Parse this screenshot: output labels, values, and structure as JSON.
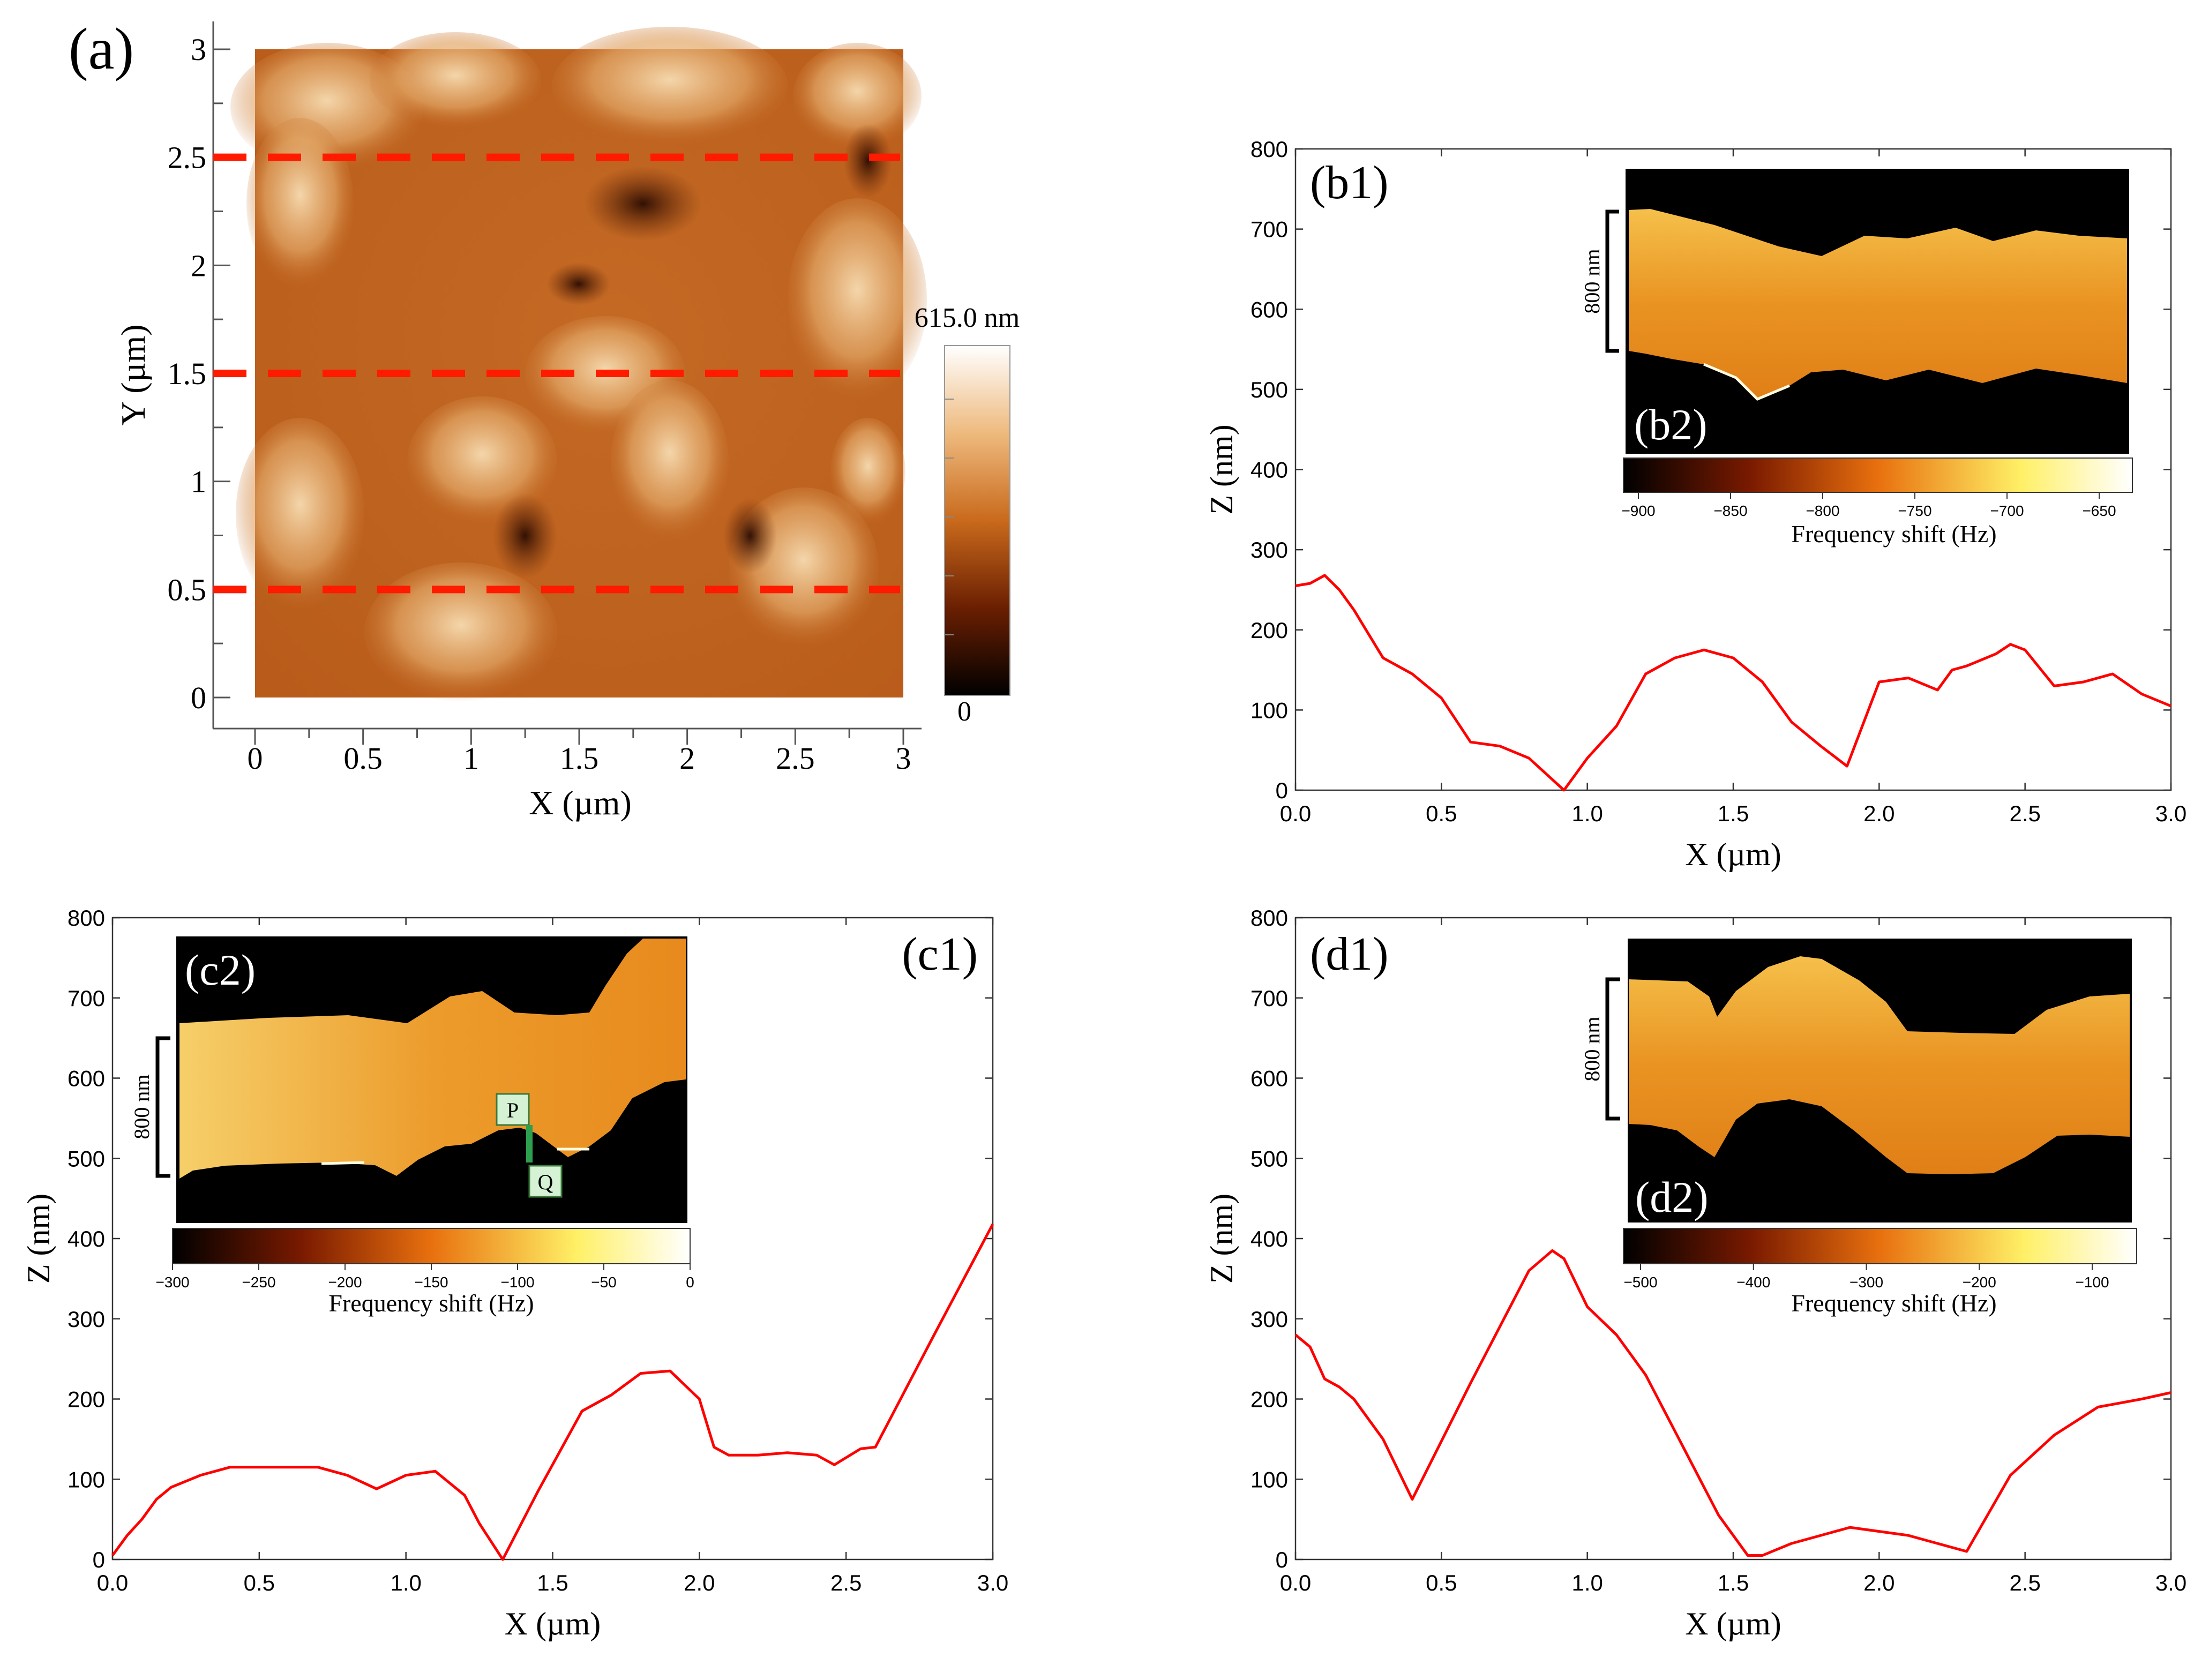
{
  "colors": {
    "profile_line": "#ff0000",
    "dash_line": "#ff1a00",
    "pq_marker": "#2e9e4f"
  },
  "panel_a": {
    "label": "(a)",
    "xlabel": "X (µm)",
    "ylabel": "Y (µm)",
    "xticks": [
      "0",
      "0.5",
      "1",
      "1.5",
      "2",
      "2.5",
      "3"
    ],
    "yticks": [
      "0",
      "0.5",
      "1",
      "1.5",
      "2",
      "2.5",
      "3"
    ],
    "scan_lines_y": [
      0.5,
      1.5,
      2.5
    ],
    "colorbar_max": "615.0 nm",
    "colorbar_min": "0"
  },
  "chart_data": [
    {
      "id": "b1",
      "type": "line",
      "label": "(b1)",
      "xlabel": "X (µm)",
      "ylabel": "Z (nm)",
      "xlim": [
        0,
        3
      ],
      "ylim": [
        0,
        800
      ],
      "xticks": [
        "0.0",
        "0.5",
        "1.0",
        "1.5",
        "2.0",
        "2.5",
        "3.0"
      ],
      "yticks": [
        "0",
        "100",
        "200",
        "300",
        "400",
        "500",
        "600",
        "700",
        "800"
      ],
      "x": [
        0,
        0.05,
        0.1,
        0.15,
        0.2,
        0.3,
        0.4,
        0.5,
        0.6,
        0.7,
        0.8,
        0.92,
        1.0,
        1.1,
        1.2,
        1.3,
        1.4,
        1.5,
        1.6,
        1.7,
        1.8,
        1.89,
        2.0,
        2.1,
        2.2,
        2.25,
        2.3,
        2.4,
        2.45,
        2.5,
        2.6,
        2.7,
        2.8,
        2.9,
        3.0
      ],
      "y": [
        255,
        258,
        268,
        250,
        225,
        165,
        145,
        115,
        60,
        55,
        40,
        0,
        40,
        80,
        145,
        165,
        175,
        165,
        135,
        85,
        55,
        30,
        135,
        140,
        125,
        150,
        155,
        170,
        182,
        175,
        130,
        135,
        145,
        120,
        105
      ],
      "inset": {
        "label": "(b2)",
        "scale_label": "800 nm",
        "cbar_title": "Frequency shift (Hz)",
        "cbar_ticks": [
          "−900",
          "−850",
          "−800",
          "−750",
          "−700",
          "−650"
        ]
      }
    },
    {
      "id": "c1",
      "type": "line",
      "label": "(c1)",
      "xlabel": "X (µm)",
      "ylabel": "Z (nm)",
      "xlim": [
        0,
        3
      ],
      "ylim": [
        0,
        800
      ],
      "xticks": [
        "0.0",
        "0.5",
        "1.0",
        "1.5",
        "2.0",
        "2.5",
        "3.0"
      ],
      "yticks": [
        "0",
        "100",
        "200",
        "300",
        "400",
        "500",
        "600",
        "700",
        "800"
      ],
      "x": [
        0,
        0.05,
        0.1,
        0.15,
        0.2,
        0.3,
        0.4,
        0.5,
        0.6,
        0.7,
        0.8,
        0.9,
        1.0,
        1.1,
        1.2,
        1.25,
        1.33,
        1.45,
        1.6,
        1.7,
        1.8,
        1.9,
        2.0,
        2.05,
        2.1,
        2.2,
        2.3,
        2.4,
        2.46,
        2.55,
        2.6,
        2.8,
        3.0
      ],
      "y": [
        5,
        30,
        50,
        75,
        90,
        105,
        115,
        115,
        115,
        115,
        105,
        88,
        105,
        110,
        80,
        45,
        0,
        85,
        185,
        205,
        232,
        235,
        200,
        140,
        130,
        130,
        133,
        130,
        118,
        138,
        140,
        280,
        418
      ],
      "inset": {
        "label": "(c2)",
        "scale_label": "800 nm",
        "cbar_title": "Frequency shift (Hz)",
        "cbar_ticks": [
          "−300",
          "−250",
          "−200",
          "−150",
          "−100",
          "−50",
          "0"
        ],
        "marker_p": "P",
        "marker_q": "Q"
      }
    },
    {
      "id": "d1",
      "type": "line",
      "label": "(d1)",
      "xlabel": "X (µm)",
      "ylabel": "Z (nm)",
      "xlim": [
        0,
        3
      ],
      "ylim": [
        0,
        800
      ],
      "xticks": [
        "0.0",
        "0.5",
        "1.0",
        "1.5",
        "2.0",
        "2.5",
        "3.0"
      ],
      "yticks": [
        "0",
        "100",
        "200",
        "300",
        "400",
        "500",
        "600",
        "700",
        "800"
      ],
      "x": [
        0,
        0.05,
        0.1,
        0.15,
        0.2,
        0.3,
        0.4,
        0.6,
        0.8,
        0.88,
        0.92,
        1.0,
        1.1,
        1.2,
        1.3,
        1.45,
        1.55,
        1.6,
        1.7,
        1.8,
        1.9,
        2.0,
        2.1,
        2.2,
        2.3,
        2.45,
        2.6,
        2.75,
        2.9,
        3.0
      ],
      "y": [
        280,
        265,
        225,
        215,
        200,
        150,
        75,
        220,
        360,
        385,
        375,
        315,
        280,
        230,
        160,
        55,
        5,
        5,
        20,
        30,
        40,
        35,
        30,
        20,
        10,
        105,
        155,
        190,
        200,
        208
      ],
      "inset": {
        "label": "(d2)",
        "scale_label": "800 nm",
        "cbar_title": "Frequency shift (Hz)",
        "cbar_ticks": [
          "−500",
          "−400",
          "−300",
          "−200",
          "−100"
        ]
      }
    }
  ]
}
